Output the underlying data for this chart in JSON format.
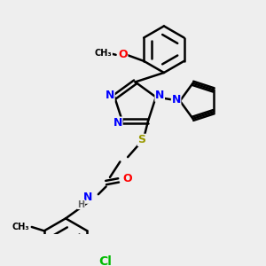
{
  "bg_color": "#eeeeee",
  "atom_colors": {
    "N": "#0000ff",
    "O": "#ff0000",
    "S": "#999900",
    "Cl": "#00bb00",
    "C": "#000000",
    "H": "#666666"
  },
  "bond_color": "#000000",
  "bond_width": 1.8,
  "font_size_atom": 9
}
